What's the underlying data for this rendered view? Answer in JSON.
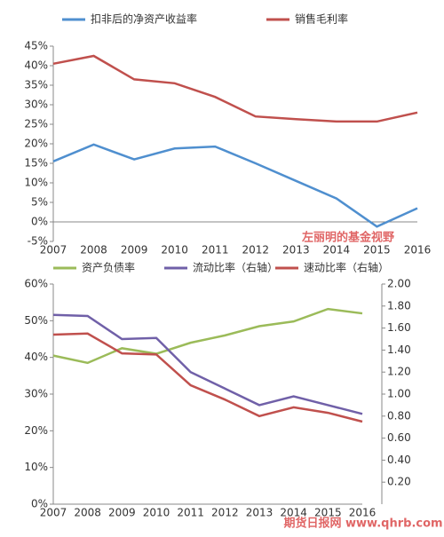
{
  "chart_data": [
    {
      "type": "line",
      "categories": [
        "2007",
        "2008",
        "2009",
        "2010",
        "2011",
        "2012",
        "2013",
        "2014",
        "2015",
        "2016"
      ],
      "series": [
        {
          "name": "扣非后的净资产收益率",
          "color": "#4f8fcf",
          "values": [
            15.5,
            19.8,
            16,
            18.8,
            19.3,
            15,
            10.5,
            6,
            -1.2,
            3.5
          ]
        },
        {
          "name": "销售毛利率",
          "color": "#c0504d",
          "values": [
            40.5,
            42.5,
            36.5,
            35.5,
            32,
            27,
            26.3,
            25.7,
            25.7,
            28
          ]
        }
      ],
      "ylim": [
        -5,
        45
      ],
      "yticks": [
        {
          "value": -5,
          "label": "-5%"
        },
        {
          "value": 0,
          "label": "0%"
        },
        {
          "value": 5,
          "label": "5%"
        },
        {
          "value": 10,
          "label": "10%"
        },
        {
          "value": 15,
          "label": "15%"
        },
        {
          "value": 20,
          "label": "20%"
        },
        {
          "value": 25,
          "label": "25%"
        },
        {
          "value": 30,
          "label": "30%"
        },
        {
          "value": 35,
          "label": "35%"
        },
        {
          "value": 40,
          "label": "40%"
        },
        {
          "value": 45,
          "label": "45%"
        }
      ],
      "watermark": "左丽明的基金视野"
    },
    {
      "type": "line",
      "categories": [
        "2007",
        "2008",
        "2009",
        "2010",
        "2011",
        "2012",
        "2013",
        "2014",
        "2015",
        "2016"
      ],
      "series": [
        {
          "name": "资产负债率",
          "color": "#9bbb59",
          "values": [
            40.5,
            38.5,
            42.5,
            41,
            44,
            46,
            48.5,
            49.8,
            53.2,
            52
          ]
        },
        {
          "name": "流动比率（右轴）",
          "color": "#7060a8",
          "axis": "y2",
          "values": [
            1.72,
            1.71,
            1.5,
            1.51,
            1.2,
            1.05,
            0.9,
            0.98,
            0.9,
            0.82
          ]
        },
        {
          "name": "速动比率（右轴）",
          "color": "#c0504d",
          "axis": "y2",
          "values": [
            1.54,
            1.55,
            1.37,
            1.36,
            1.08,
            0.95,
            0.8,
            0.88,
            0.83,
            0.75
          ]
        }
      ],
      "ylim": [
        0,
        60
      ],
      "yticks": [
        {
          "value": 0,
          "label": "0%"
        },
        {
          "value": 10,
          "label": "10%"
        },
        {
          "value": 20,
          "label": "20%"
        },
        {
          "value": 30,
          "label": "30%"
        },
        {
          "value": 40,
          "label": "40%"
        },
        {
          "value": 50,
          "label": "50%"
        },
        {
          "value": 60,
          "label": "60%"
        }
      ],
      "y2lim": [
        0,
        2
      ],
      "y2ticks": [
        {
          "value": 0.2,
          "label": "0.20"
        },
        {
          "value": 0.4,
          "label": "0.40"
        },
        {
          "value": 0.6,
          "label": "0.60"
        },
        {
          "value": 0.8,
          "label": "0.80"
        },
        {
          "value": 1,
          "label": "1.00"
        },
        {
          "value": 1.2,
          "label": "1.20"
        },
        {
          "value": 1.4,
          "label": "1.40"
        },
        {
          "value": 1.6,
          "label": "1.60"
        },
        {
          "value": 1.8,
          "label": "1.80"
        },
        {
          "value": 2,
          "label": "2.00"
        }
      ],
      "watermark": "期货日报网 www.qhrb.com.cn"
    }
  ]
}
